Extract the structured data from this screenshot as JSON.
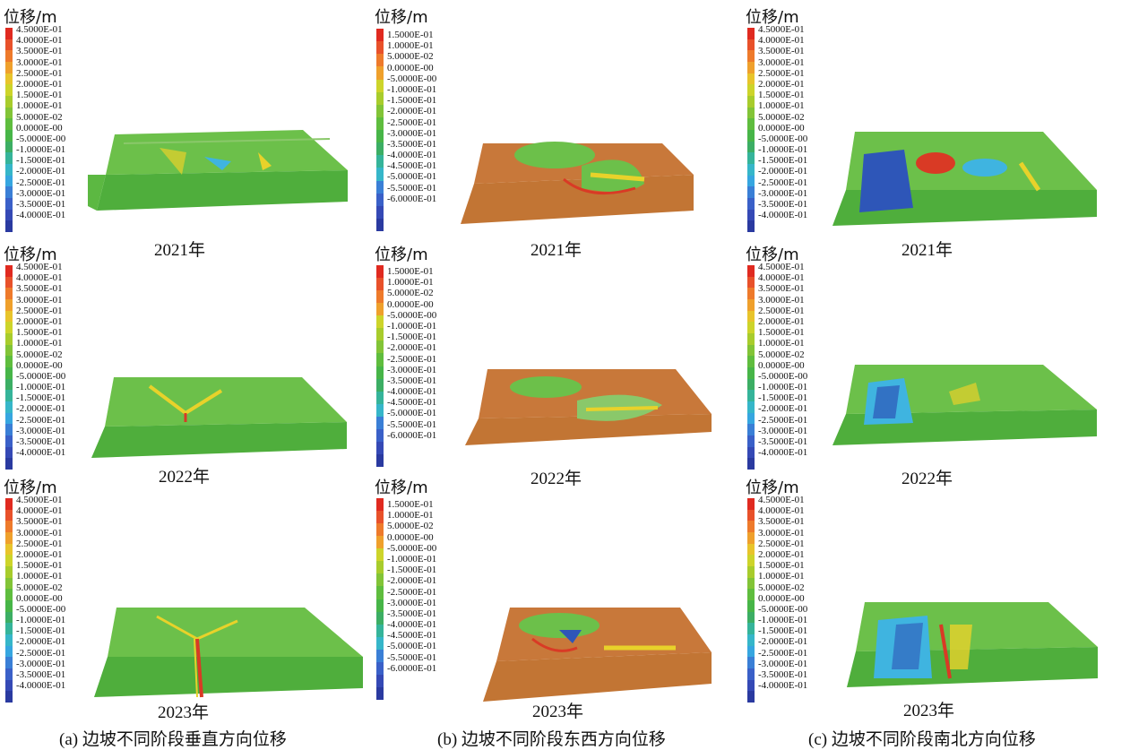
{
  "figure": {
    "unit_title": "位移/m",
    "columns": [
      {
        "caption": "(a) 边坡不同阶段垂直方向位移",
        "scale": [
          "4.5000E-01",
          "4.0000E-01",
          "3.5000E-01",
          "3.0000E-01",
          "2.5000E-01",
          "2.0000E-01",
          "1.5000E-01",
          "1.0000E-01",
          "5.0000E-02",
          "0.0000E-00",
          "-5.0000E-00",
          "-1.0000E-01",
          "-1.5000E-01",
          "-2.0000E-01",
          "-2.5000E-01",
          "-3.0000E-01",
          "-3.5000E-01",
          "-4.0000E-01"
        ],
        "years": [
          "2021年",
          "2022年",
          "2023年"
        ]
      },
      {
        "caption": "(b) 边坡不同阶段东西方向位移",
        "scale": [
          "1.5000E-01",
          "1.0000E-01",
          "5.0000E-02",
          "0.0000E-00",
          "-5.0000E-00",
          "-1.0000E-01",
          "-1.5000E-01",
          "-2.0000E-01",
          "-2.5000E-01",
          "-3.0000E-01",
          "-3.5000E-01",
          "-4.0000E-01",
          "-4.5000E-01",
          "-5.0000E-01",
          "-5.5000E-01",
          "-6.0000E-01"
        ],
        "years": [
          "2021年",
          "2022年",
          "2023年"
        ]
      },
      {
        "caption": "(c) 边坡不同阶段南北方向位移",
        "scale": [
          "4.5000E-01",
          "4.0000E-01",
          "3.5000E-01",
          "3.0000E-01",
          "2.5000E-01",
          "2.0000E-01",
          "1.5000E-01",
          "1.0000E-01",
          "5.0000E-02",
          "0.0000E-00",
          "-5.0000E-00",
          "-1.0000E-01",
          "-1.5000E-01",
          "-2.0000E-01",
          "-2.5000E-01",
          "-3.0000E-01",
          "-3.5000E-01",
          "-4.0000E-01"
        ],
        "years": [
          "2021年",
          "2022年",
          "2023年"
        ]
      }
    ],
    "colors": {
      "green": "#5cb842",
      "orange": "#cc7a33",
      "blue": "#2e56b8",
      "cyan": "#3fb4e0",
      "red": "#d93a25",
      "yellow": "#e8d22a"
    }
  }
}
